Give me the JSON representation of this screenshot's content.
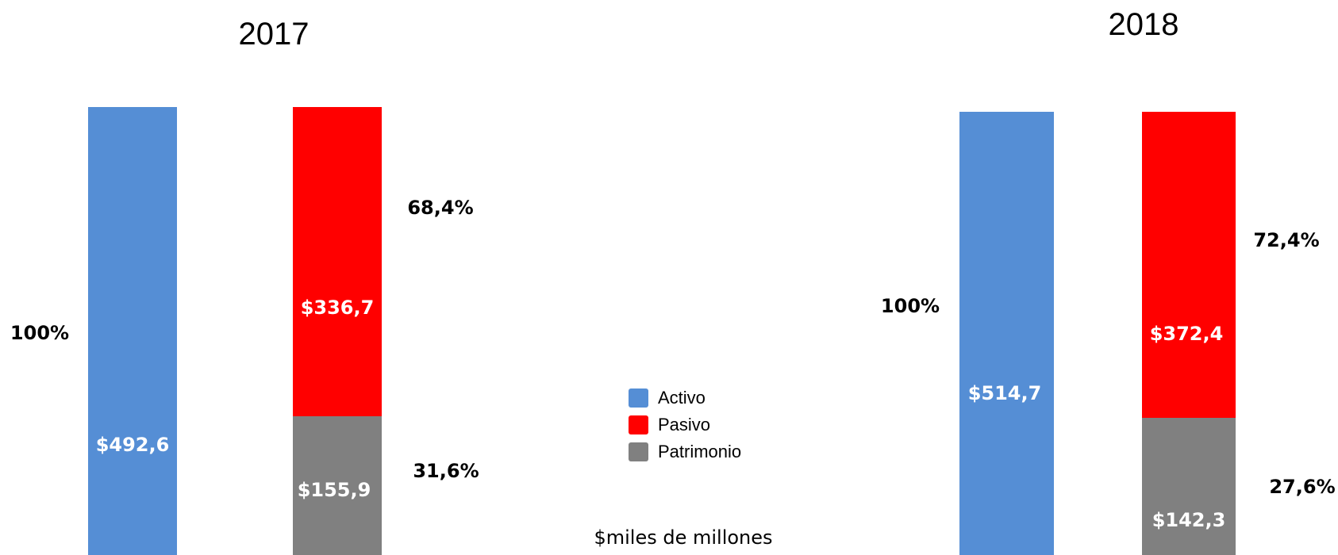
{
  "chart_data": [
    {
      "type": "bar",
      "title": "2017",
      "stacks": [
        {
          "segments": [
            {
              "series": "Activo",
              "value": 492.6,
              "label": "$492,6"
            }
          ],
          "percent_labels": [
            "100%"
          ]
        },
        {
          "segments": [
            {
              "series": "Patrimonio",
              "value": 155.9,
              "label": "$155,9"
            },
            {
              "series": "Pasivo",
              "value": 336.7,
              "label": "$336,7"
            }
          ],
          "percent_labels": [
            "68,4%",
            "31,6%"
          ]
        }
      ]
    },
    {
      "type": "bar",
      "title": "2018",
      "stacks": [
        {
          "segments": [
            {
              "series": "Activo",
              "value": 514.7,
              "label": "$514,7"
            }
          ],
          "percent_labels": [
            "100%"
          ]
        },
        {
          "segments": [
            {
              "series": "Patrimonio",
              "value": 142.3,
              "label": "$142,3"
            },
            {
              "series": "Pasivo",
              "value": 372.4,
              "label": "$372,4"
            }
          ],
          "percent_labels": [
            "72,4%",
            "27,6%"
          ]
        }
      ]
    }
  ],
  "legend": [
    {
      "name": "Activo",
      "color": "#558ed5"
    },
    {
      "name": "Pasivo",
      "color": "#ff0000"
    },
    {
      "name": "Patrimonio",
      "color": "#808080"
    }
  ],
  "unit_note": "$miles de millones"
}
